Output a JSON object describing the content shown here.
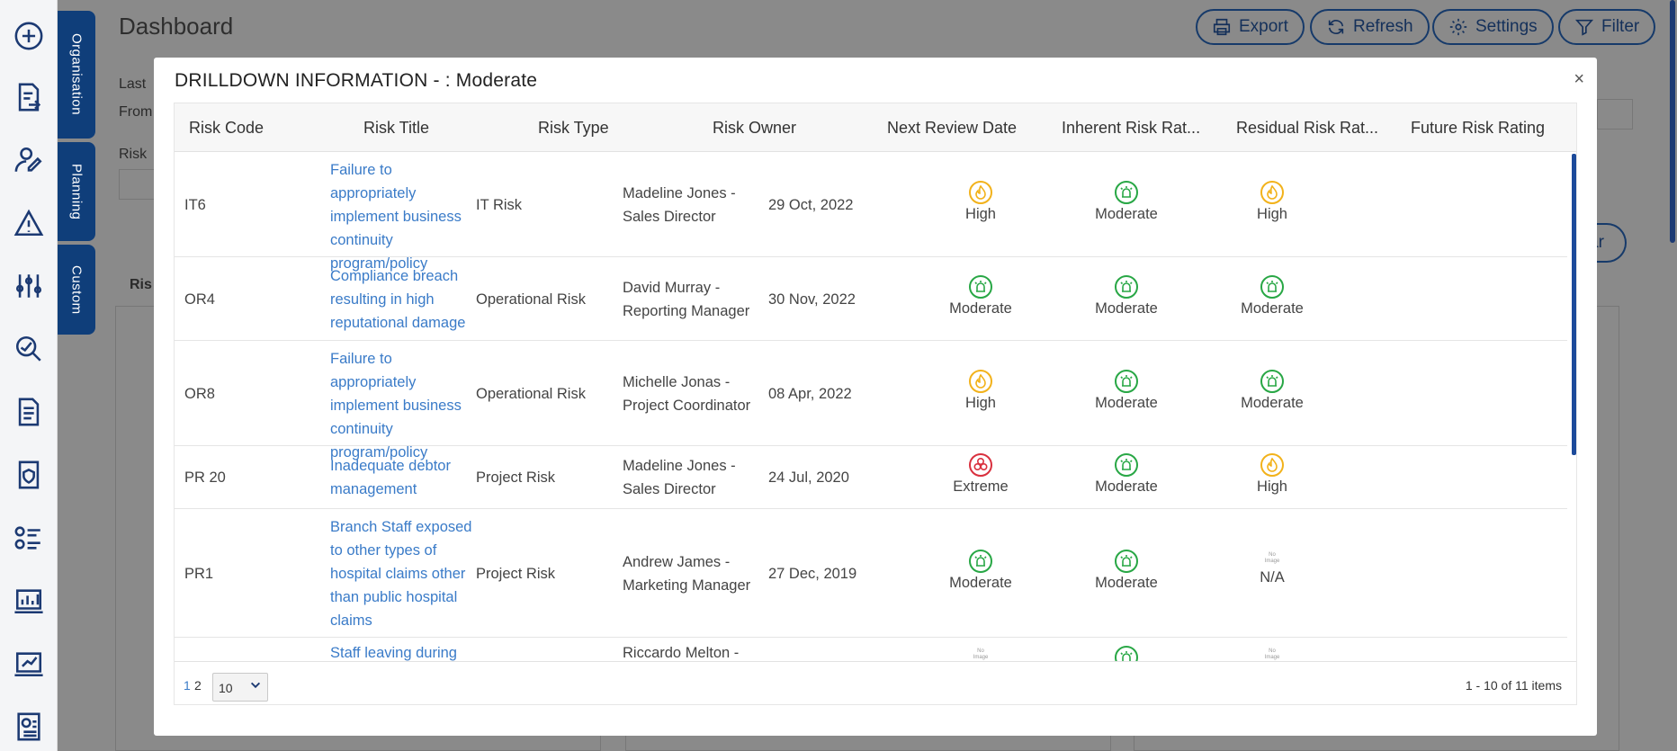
{
  "page": {
    "title": "Dashboard",
    "toolbar": {
      "export": "Export",
      "refresh": "Refresh",
      "settings": "Settings",
      "filter": "Filter"
    },
    "side_tabs": [
      "Organisation",
      "Planning",
      "Custom"
    ],
    "bg_labels": {
      "last": "Last",
      "from": "From",
      "risk": "Risk",
      "ris": "Ris",
      "clear_partial": "ar"
    }
  },
  "modal": {
    "title": "DRILLDOWN INFORMATION - : Moderate",
    "close": "×",
    "columns": [
      "Risk Code",
      "Risk Title",
      "Risk Type",
      "Risk Owner",
      "Next Review Date",
      "Inherent Risk Rat...",
      "Residual Risk Rat...",
      "Future Risk Rating"
    ],
    "rows": [
      {
        "code": "IT6",
        "title": [
          "Failure to appropriately",
          "implement business",
          "continuity",
          "program/policy"
        ],
        "type": "IT Risk",
        "owner": [
          "Madeline Jones -",
          "Sales Director"
        ],
        "date": "29 Oct, 2022",
        "inherent": "High",
        "residual": "Moderate",
        "future": "High"
      },
      {
        "code": "OR4",
        "title": [
          "Compliance breach",
          "resulting in high",
          "reputational damage"
        ],
        "type": "Operational Risk",
        "owner": [
          "David Murray -",
          "Reporting Manager"
        ],
        "date": "30 Nov, 2022",
        "inherent": "Moderate",
        "residual": "Moderate",
        "future": "Moderate"
      },
      {
        "code": "OR8",
        "title": [
          "Failure to appropriately",
          "implement business",
          "continuity",
          "program/policy"
        ],
        "type": "Operational Risk",
        "owner": [
          "Michelle Jonas -",
          "Project Coordinator"
        ],
        "date": "08 Apr, 2022",
        "inherent": "High",
        "residual": "Moderate",
        "future": "Moderate"
      },
      {
        "code": "PR 20",
        "title": [
          "Inadequate debtor",
          "management"
        ],
        "type": "Project Risk",
        "owner": [
          "Madeline Jones -",
          "Sales Director"
        ],
        "date": "24 Jul, 2020",
        "inherent": "Extreme",
        "residual": "Moderate",
        "future": "High"
      },
      {
        "code": "PR1",
        "title": [
          "Branch Staff exposed",
          "to other types of",
          "hospital claims other",
          "than public hospital",
          "claims"
        ],
        "type": "Project Risk",
        "owner": [
          "Andrew James -",
          "Marketing Manager"
        ],
        "date": "27 Dec, 2019",
        "inherent": "Moderate",
        "residual": "Moderate",
        "future": "N/A"
      },
      {
        "code": "",
        "title": [
          "Staff leaving during"
        ],
        "type": "",
        "owner": [
          "Riccardo Melton -"
        ],
        "date": "",
        "inherent": "",
        "residual": "",
        "future": ""
      }
    ],
    "no_image_text": [
      "No",
      "Image"
    ],
    "pager": {
      "pages": [
        "1",
        "2"
      ],
      "page_size": "10",
      "info": "1 - 10 of 11 items"
    }
  },
  "colors": {
    "high": "#f2b21b",
    "moderate": "#28a745",
    "extreme": "#d9303e",
    "link": "#3a7bc8",
    "navy": "#0f3e7a"
  }
}
